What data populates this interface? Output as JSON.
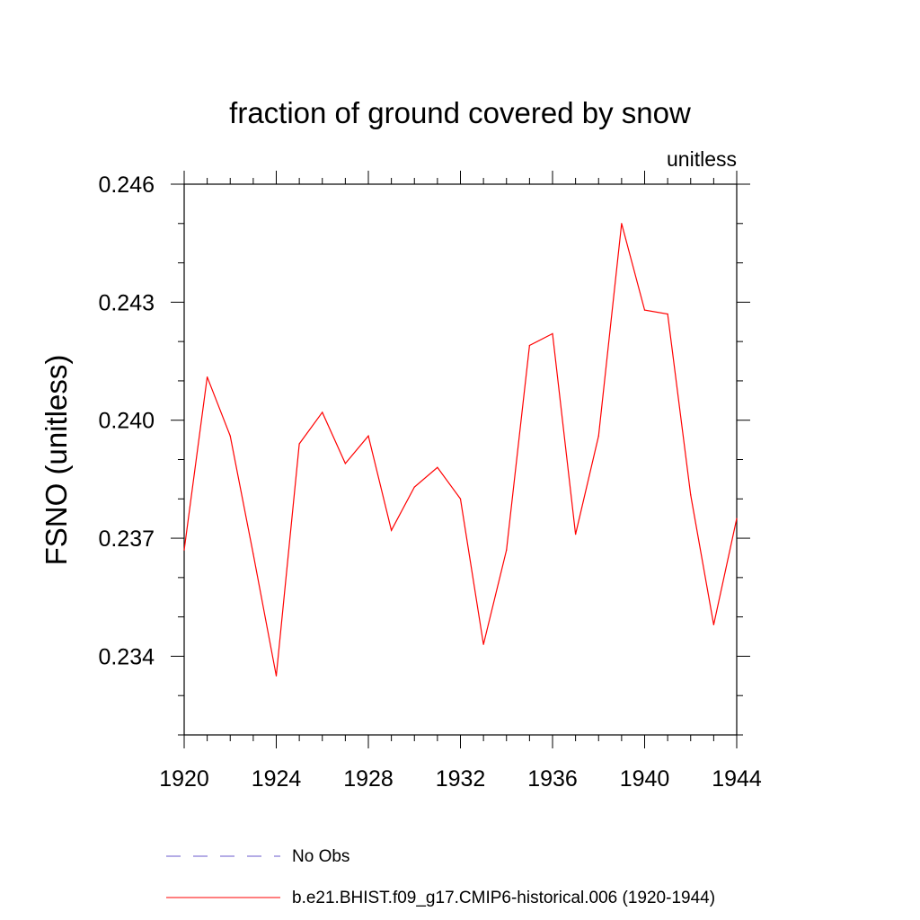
{
  "chart_data": {
    "type": "line",
    "title": "fraction of ground covered by snow",
    "units_label": "unitless",
    "ylabel": "FSNO  (unitless)",
    "xlabel": "",
    "xlim": [
      1920,
      1944
    ],
    "ylim": [
      0.232,
      0.246
    ],
    "x_ticks": [
      1920,
      1924,
      1928,
      1932,
      1936,
      1940,
      1944
    ],
    "y_ticks": [
      "0.234",
      "0.237",
      "0.240",
      "0.243",
      "0.246"
    ],
    "series": [
      {
        "name": "b.e21.BHIST.f09_g17.CMIP6-historical.006 (1920-1944)",
        "color": "#ff0000",
        "x": [
          1920,
          1921,
          1922,
          1923,
          1924,
          1925,
          1926,
          1927,
          1928,
          1929,
          1930,
          1931,
          1932,
          1933,
          1934,
          1935,
          1936,
          1937,
          1938,
          1939,
          1940,
          1941,
          1942,
          1943,
          1944
        ],
        "values": [
          0.2367,
          0.2411,
          0.2396,
          0.2366,
          0.2335,
          0.2394,
          0.2402,
          0.2389,
          0.2396,
          0.2372,
          0.2383,
          0.2388,
          0.238,
          0.2343,
          0.2367,
          0.2419,
          0.2422,
          0.2371,
          0.2396,
          0.245,
          0.2428,
          0.2427,
          0.2381,
          0.2348,
          0.2375
        ]
      }
    ],
    "legend": [
      {
        "label": "No Obs",
        "style": "dashed",
        "color": "#6a5acd"
      },
      {
        "label": "b.e21.BHIST.f09_g17.CMIP6-historical.006 (1920-1944)",
        "style": "solid",
        "color": "#ff0000"
      }
    ],
    "legend_position": "bottom"
  }
}
